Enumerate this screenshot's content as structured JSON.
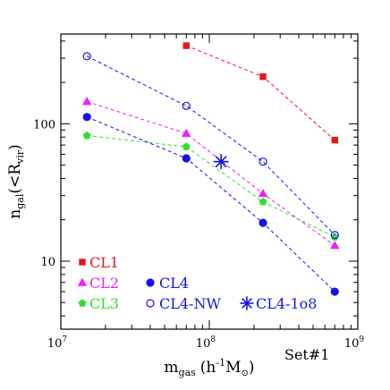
{
  "chart_data": {
    "type": "line",
    "title": "",
    "xlabel": "m",
    "xlabel_sub": "gas",
    "xlabel_unit": "(h",
    "xlabel_exp": "-1",
    "xlabel_unit2": "M",
    "xlabel_sun": "⊙",
    "xlabel_close": ")",
    "ylabel": "n",
    "ylabel_sub": "gal",
    "ylabel_mid": "(<R",
    "ylabel_sub2": "vir",
    "ylabel_close": ")",
    "x_scale": "log",
    "y_scale": "log",
    "xlim": [
      10000000,
      1000000000
    ],
    "ylim": [
      3.2,
      450
    ],
    "x_ticks": [
      {
        "value": 10000000,
        "base": "10",
        "exp": "7"
      },
      {
        "value": 100000000,
        "base": "10",
        "exp": "8"
      },
      {
        "value": 1000000000,
        "base": "10",
        "exp": "9"
      }
    ],
    "y_ticks": [
      {
        "value": 10,
        "label": "10"
      },
      {
        "value": 100,
        "label": "100"
      }
    ],
    "annotation": "Set#1",
    "grid": false,
    "legend_position": "bottom-left",
    "series": [
      {
        "name": "CL1",
        "color": "#e8141e",
        "marker": "square",
        "fill": true,
        "x": [
          70000000,
          230000000,
          700000000
        ],
        "y": [
          370,
          220,
          76
        ]
      },
      {
        "name": "CL2",
        "color": "#f020f0",
        "marker": "triangle",
        "fill": true,
        "x": [
          15000000,
          70000000,
          230000000,
          700000000
        ],
        "y": [
          145,
          85,
          31,
          13
        ]
      },
      {
        "name": "CL3",
        "color": "#2ee02e",
        "marker": "pentagon",
        "fill": true,
        "x": [
          15000000,
          70000000,
          230000000,
          700000000
        ],
        "y": [
          82,
          68,
          27,
          15
        ]
      },
      {
        "name": "CL4",
        "color": "#1414e6",
        "marker": "circle",
        "fill": true,
        "x": [
          15000000,
          70000000,
          230000000,
          700000000
        ],
        "y": [
          112,
          56,
          19,
          6
        ]
      },
      {
        "name": "CL4-NW",
        "color": "#1414e6",
        "marker": "circle",
        "fill": false,
        "x": [
          15000000,
          70000000,
          230000000,
          700000000
        ],
        "y": [
          310,
          135,
          53,
          15.5
        ]
      },
      {
        "name": "CL4-1o8",
        "color": "#1414e6",
        "marker": "star",
        "fill": true,
        "x": [
          120000000
        ],
        "y": [
          53
        ]
      }
    ],
    "legend": [
      {
        "label": "CL1",
        "series": 0
      },
      {
        "label": "CL2",
        "series": 1
      },
      {
        "label": "CL4",
        "series": 3
      },
      {
        "label": "CL3",
        "series": 2
      },
      {
        "label": "CL4-NW",
        "series": 4
      },
      {
        "label": "CL4-1o8",
        "series": 5
      }
    ]
  }
}
